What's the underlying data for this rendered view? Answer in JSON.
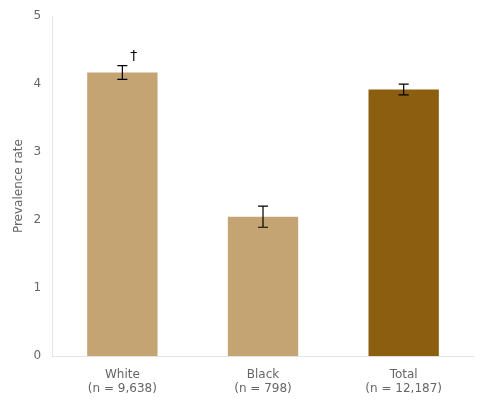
{
  "chart_data": {
    "type": "bar",
    "categories": [
      "White\n(n = 9,638)",
      "Black\n(n = 798)",
      "Total\n(n = 12,187)"
    ],
    "values": [
      4.17,
      2.05,
      3.92
    ],
    "errors": [
      0.1,
      0.155,
      0.08
    ],
    "colors": [
      "#C4A472",
      "#C4A472",
      "#8B5E10"
    ],
    "ylabel": "Prevalence rate",
    "ylim": [
      0,
      5
    ],
    "yticks": [
      0,
      1,
      2,
      3,
      4,
      5
    ],
    "annotations": [
      {
        "text": "†",
        "category": "White\n(n = 9,638)"
      }
    ],
    "grid": false
  }
}
